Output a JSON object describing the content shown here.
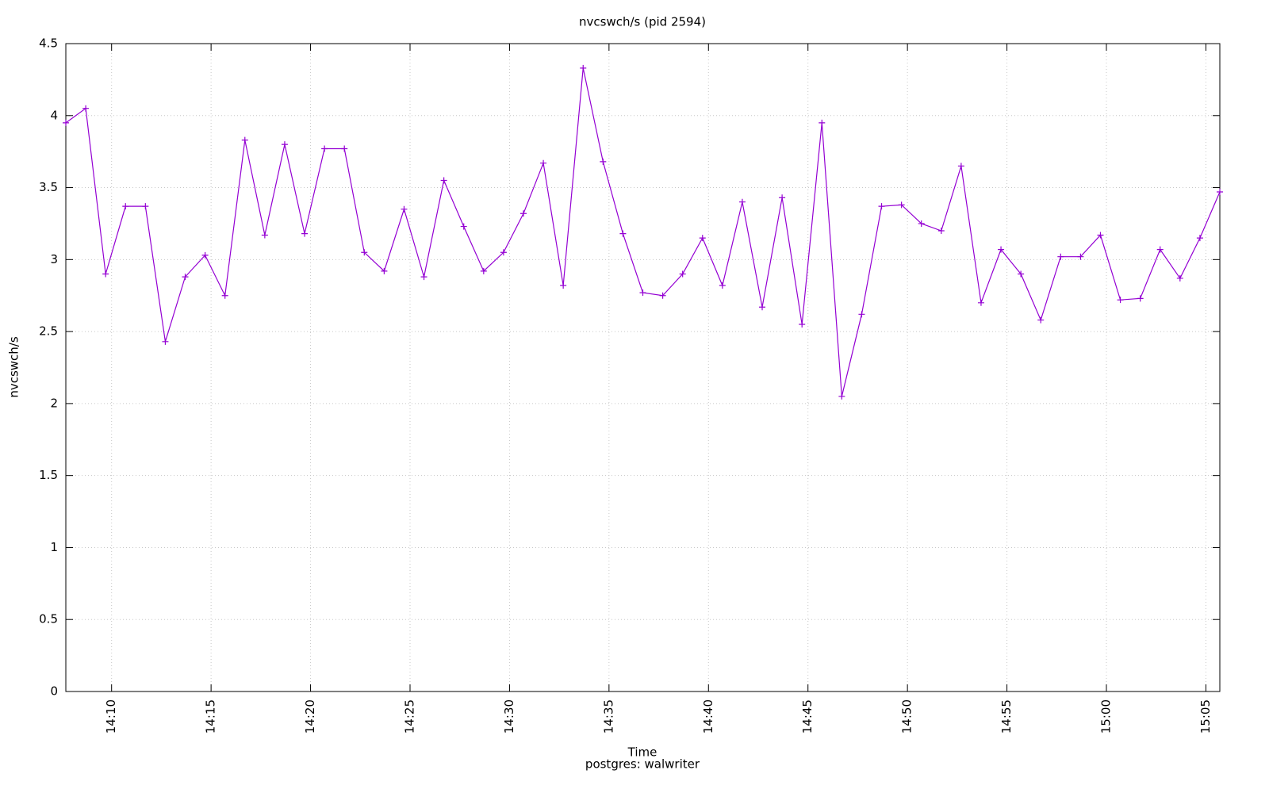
{
  "chart_data": {
    "type": "line",
    "title": "nvcswch/s (pid 2594)",
    "xlabel": "Time",
    "xlabel_line2": "postgres: walwriter",
    "ylabel": "nvcswch/s",
    "color": "#9400d3",
    "grid": true,
    "x": [
      847.7,
      848.7,
      849.7,
      850.7,
      851.7,
      852.7,
      853.7,
      854.7,
      855.7,
      856.7,
      857.7,
      858.7,
      859.7,
      860.7,
      861.7,
      862.7,
      863.7,
      864.7,
      865.7,
      866.7,
      867.7,
      868.7,
      869.7,
      870.7,
      871.7,
      872.7,
      873.7,
      874.7,
      875.7,
      876.7,
      877.7,
      878.7,
      879.7,
      880.7,
      881.7,
      882.7,
      883.7,
      884.7,
      885.7,
      886.7,
      887.7,
      888.7,
      889.7,
      890.7,
      891.7,
      892.7,
      893.7,
      894.7,
      895.7,
      896.7,
      897.7,
      898.7,
      899.7,
      900.7,
      901.7,
      902.7,
      903.7,
      904.7,
      905.7
    ],
    "values": [
      3.95,
      4.05,
      2.9,
      3.37,
      3.37,
      2.43,
      2.88,
      3.03,
      2.75,
      3.83,
      3.17,
      3.8,
      3.18,
      3.77,
      3.77,
      3.05,
      2.92,
      3.35,
      2.88,
      3.55,
      3.23,
      2.92,
      3.05,
      3.32,
      3.67,
      2.82,
      4.33,
      3.68,
      3.18,
      2.77,
      2.75,
      2.9,
      3.15,
      2.82,
      3.4,
      2.67,
      3.43,
      2.55,
      3.95,
      2.05,
      2.62,
      3.37,
      3.38,
      3.25,
      3.2,
      3.65,
      2.7,
      3.07,
      2.9,
      2.58,
      3.02,
      3.02,
      3.17,
      2.72,
      2.73,
      3.07,
      2.87,
      3.15,
      3.47
    ],
    "xlim": [
      847.7,
      905.7
    ],
    "xticks": [
      {
        "value": 850,
        "label": "14:10"
      },
      {
        "value": 855,
        "label": "14:15"
      },
      {
        "value": 860,
        "label": "14:20"
      },
      {
        "value": 865,
        "label": "14:25"
      },
      {
        "value": 870,
        "label": "14:30"
      },
      {
        "value": 875,
        "label": "14:35"
      },
      {
        "value": 880,
        "label": "14:40"
      },
      {
        "value": 885,
        "label": "14:45"
      },
      {
        "value": 890,
        "label": "14:50"
      },
      {
        "value": 895,
        "label": "14:55"
      },
      {
        "value": 900,
        "label": "15:00"
      },
      {
        "value": 905,
        "label": "15:05"
      }
    ],
    "ylim": [
      0,
      4.5
    ],
    "yticks": [
      0,
      0.5,
      1,
      1.5,
      2,
      2.5,
      3,
      3.5,
      4,
      4.5
    ]
  }
}
